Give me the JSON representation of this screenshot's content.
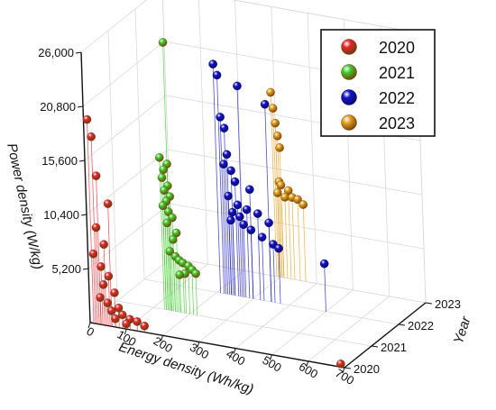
{
  "chart_data": {
    "type": "scatter",
    "subtype": "3d-scatter-with-drop-lines",
    "title": "",
    "xlabel": "Energy density (Wh/kg)",
    "ylabel": "Year",
    "zlabel": "Power density (W/kg)",
    "xlim": [
      0,
      700
    ],
    "ylim": [
      2020,
      2023
    ],
    "zlim": [
      0,
      26000
    ],
    "x_ticks": [
      "0",
      "100",
      "200",
      "300",
      "400",
      "500",
      "600",
      "700"
    ],
    "y_ticks": [
      "2020",
      "2021",
      "2022",
      "2023"
    ],
    "z_ticks": [
      "5,200",
      "10,400",
      "15,600",
      "20,800",
      "26,000"
    ],
    "grid": true,
    "legend_position": "top-right",
    "series": [
      {
        "name": "2020",
        "year": 2020,
        "color": "#e8262b",
        "shade": "#6e3b0f",
        "points": [
          {
            "x": 10,
            "z": 19600
          },
          {
            "x": 20,
            "z": 18000
          },
          {
            "x": 30,
            "z": 14300
          },
          {
            "x": 60,
            "z": 11800
          },
          {
            "x": 25,
            "z": 9300
          },
          {
            "x": 45,
            "z": 7800
          },
          {
            "x": 15,
            "z": 6700
          },
          {
            "x": 35,
            "z": 5600
          },
          {
            "x": 55,
            "z": 4800
          },
          {
            "x": 40,
            "z": 3900
          },
          {
            "x": 70,
            "z": 3300
          },
          {
            "x": 30,
            "z": 2600
          },
          {
            "x": 50,
            "z": 2200
          },
          {
            "x": 80,
            "z": 1900
          },
          {
            "x": 60,
            "z": 1500
          },
          {
            "x": 90,
            "z": 1300
          },
          {
            "x": 110,
            "z": 1000
          },
          {
            "x": 130,
            "z": 900
          },
          {
            "x": 70,
            "z": 800
          },
          {
            "x": 150,
            "z": 600
          },
          {
            "x": 100,
            "z": 500
          },
          {
            "x": 690,
            "z": 300
          }
        ]
      },
      {
        "name": "2021",
        "year": 2021,
        "color": "#3ccf2a",
        "shade": "#6e4b0f",
        "points": [
          {
            "x": 150,
            "z": 25800
          },
          {
            "x": 130,
            "z": 14600
          },
          {
            "x": 150,
            "z": 14100
          },
          {
            "x": 140,
            "z": 13500
          },
          {
            "x": 135,
            "z": 12700
          },
          {
            "x": 150,
            "z": 12000
          },
          {
            "x": 140,
            "z": 11500
          },
          {
            "x": 155,
            "z": 11000
          },
          {
            "x": 145,
            "z": 10500
          },
          {
            "x": 135,
            "z": 10000
          },
          {
            "x": 150,
            "z": 9500
          },
          {
            "x": 160,
            "z": 9000
          },
          {
            "x": 145,
            "z": 8400
          },
          {
            "x": 170,
            "z": 7600
          },
          {
            "x": 160,
            "z": 6900
          },
          {
            "x": 150,
            "z": 5700
          },
          {
            "x": 165,
            "z": 5300
          },
          {
            "x": 175,
            "z": 5000
          },
          {
            "x": 185,
            "z": 4800
          },
          {
            "x": 200,
            "z": 4600
          },
          {
            "x": 210,
            "z": 4300
          },
          {
            "x": 220,
            "z": 4000
          },
          {
            "x": 190,
            "z": 3800
          },
          {
            "x": 175,
            "z": 3600
          }
        ]
      },
      {
        "name": "2022",
        "year": 2022,
        "color": "#1414c8",
        "shade": "#0a0a6e",
        "points": [
          {
            "x": 210,
            "z": 22000
          },
          {
            "x": 220,
            "z": 21000
          },
          {
            "x": 275,
            "z": 20300
          },
          {
            "x": 350,
            "z": 19000
          },
          {
            "x": 225,
            "z": 17000
          },
          {
            "x": 235,
            "z": 16000
          },
          {
            "x": 240,
            "z": 13500
          },
          {
            "x": 230,
            "z": 12500
          },
          {
            "x": 250,
            "z": 12000
          },
          {
            "x": 260,
            "z": 11000
          },
          {
            "x": 300,
            "z": 10500
          },
          {
            "x": 240,
            "z": 9500
          },
          {
            "x": 265,
            "z": 8800
          },
          {
            "x": 290,
            "z": 8500
          },
          {
            "x": 250,
            "z": 8000
          },
          {
            "x": 270,
            "z": 7700
          },
          {
            "x": 245,
            "z": 7200
          },
          {
            "x": 280,
            "z": 7000
          },
          {
            "x": 320,
            "z": 8300
          },
          {
            "x": 350,
            "z": 7600
          },
          {
            "x": 300,
            "z": 6600
          },
          {
            "x": 330,
            "z": 6100
          },
          {
            "x": 360,
            "z": 5600
          },
          {
            "x": 375,
            "z": 5300
          },
          {
            "x": 500,
            "z": 4600
          }
        ]
      },
      {
        "name": "2023",
        "year": 2023,
        "color": "#e8a020",
        "shade": "#7a4a0a",
        "points": [
          {
            "x": 290,
            "z": 17700
          },
          {
            "x": 295,
            "z": 16200
          },
          {
            "x": 300,
            "z": 14800
          },
          {
            "x": 305,
            "z": 13600
          },
          {
            "x": 310,
            "z": 12500
          },
          {
            "x": 305,
            "z": 9200
          },
          {
            "x": 310,
            "z": 8900
          },
          {
            "x": 330,
            "z": 8500
          },
          {
            "x": 300,
            "z": 8100
          },
          {
            "x": 320,
            "z": 7800
          },
          {
            "x": 340,
            "z": 7900
          },
          {
            "x": 355,
            "z": 7800
          },
          {
            "x": 370,
            "z": 7400
          }
        ]
      }
    ]
  }
}
